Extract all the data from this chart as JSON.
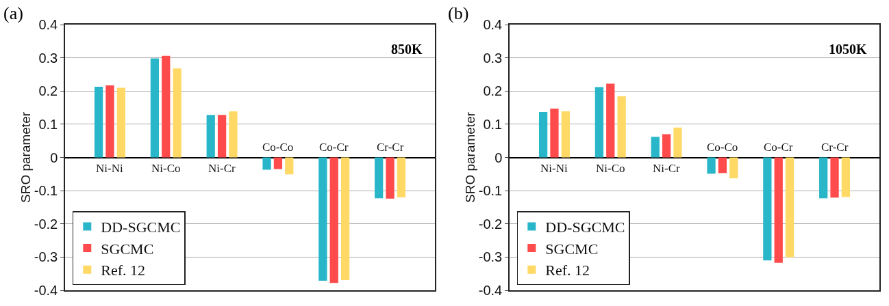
{
  "chart_data": [
    {
      "type": "bar",
      "ylabel": "SRO parameter",
      "annotations": [
        "(a)",
        "850K"
      ],
      "categories": [
        "Ni-Ni",
        "Ni-Co",
        "Ni-Cr",
        "Co-Co",
        "Co-Cr",
        "Cr-Cr"
      ],
      "series": [
        {
          "name": "DD-SGCMC",
          "color": "#29b6c8",
          "values": [
            0.213,
            0.298,
            0.128,
            -0.037,
            -0.371,
            -0.123
          ]
        },
        {
          "name": "SGCMC",
          "color": "#ff4b4b",
          "values": [
            0.217,
            0.306,
            0.128,
            -0.035,
            -0.378,
            -0.124
          ]
        },
        {
          "name": "Ref. 12",
          "color": "#ffd966",
          "values": [
            0.21,
            0.268,
            0.139,
            -0.051,
            -0.369,
            -0.12
          ]
        }
      ],
      "ylim": [
        -0.4,
        0.4
      ],
      "yticks": [
        -0.4,
        -0.3,
        -0.2,
        -0.1,
        0,
        0.1,
        0.2,
        0.3,
        0.4
      ],
      "grid": "y",
      "legend": "bottom left"
    },
    {
      "type": "bar",
      "ylabel": "SRO parameter",
      "annotations": [
        "(b)",
        "1050K"
      ],
      "categories": [
        "Ni-Ni",
        "Ni-Co",
        "Ni-Cr",
        "Co-Co",
        "Co-Cr",
        "Cr-Cr"
      ],
      "series": [
        {
          "name": "DD-SGCMC",
          "color": "#29b6c8",
          "values": [
            0.137,
            0.212,
            0.062,
            -0.049,
            -0.31,
            -0.123
          ]
        },
        {
          "name": "SGCMC",
          "color": "#ff4b4b",
          "values": [
            0.147,
            0.222,
            0.07,
            -0.047,
            -0.317,
            -0.121
          ]
        },
        {
          "name": "Ref. 12",
          "color": "#ffd966",
          "values": [
            0.139,
            0.184,
            0.09,
            -0.063,
            -0.3,
            -0.119
          ]
        }
      ],
      "ylim": [
        -0.4,
        0.4
      ],
      "yticks": [
        -0.4,
        -0.3,
        -0.2,
        -0.1,
        0,
        0.1,
        0.2,
        0.3,
        0.4
      ],
      "grid": "y",
      "legend": "bottom left"
    }
  ]
}
